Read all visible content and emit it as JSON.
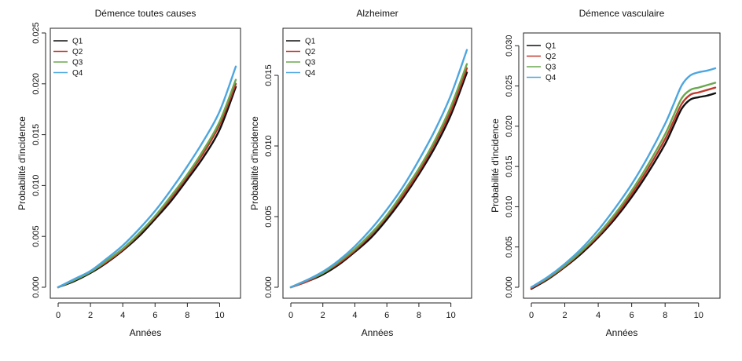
{
  "chart_data": [
    {
      "type": "line",
      "title": "Démence toutes causes",
      "xlabel": "Années",
      "ylabel": "Probabilité d'incidence",
      "xlim": [
        0,
        11
      ],
      "ylim": [
        0,
        0.025
      ],
      "xticks": [
        0,
        2,
        4,
        6,
        8,
        10
      ],
      "yticks": [
        0.0,
        0.005,
        0.01,
        0.015,
        0.02,
        0.025
      ],
      "ytick_labels": [
        "0.000",
        "0.005",
        "0.010",
        "0.015",
        "0.020",
        "0.025"
      ],
      "legend": "top-left",
      "grid": false,
      "x": [
        0,
        1,
        2,
        3,
        4,
        5,
        6,
        7,
        8,
        9,
        10,
        11
      ],
      "series": [
        {
          "name": "Q1",
          "color": "#111111",
          "values": [
            0,
            0.0006,
            0.0014,
            0.0024,
            0.0036,
            0.005,
            0.0067,
            0.0085,
            0.0106,
            0.0128,
            0.0155,
            0.0197
          ]
        },
        {
          "name": "Q2",
          "color": "#c0392b",
          "values": [
            0,
            0.0007,
            0.0015,
            0.0025,
            0.0037,
            0.0052,
            0.0069,
            0.0088,
            0.0109,
            0.0132,
            0.016,
            0.02
          ]
        },
        {
          "name": "Q3",
          "color": "#6aa84f",
          "values": [
            0,
            0.0007,
            0.0015,
            0.0026,
            0.0038,
            0.0053,
            0.007,
            0.009,
            0.0111,
            0.0135,
            0.0163,
            0.0204
          ]
        },
        {
          "name": "Q4",
          "color": "#4da6e0",
          "values": [
            0,
            0.0008,
            0.0016,
            0.0028,
            0.0041,
            0.0057,
            0.0075,
            0.0096,
            0.0119,
            0.0144,
            0.0173,
            0.0217
          ]
        }
      ]
    },
    {
      "type": "line",
      "title": "Alzheimer",
      "xlabel": "Années",
      "ylabel": "Probabilité d'incidence",
      "xlim": [
        0,
        11
      ],
      "ylim": [
        0,
        0.018
      ],
      "xticks": [
        0,
        2,
        4,
        6,
        8,
        10
      ],
      "yticks": [
        0.0,
        0.005,
        0.01,
        0.015
      ],
      "ytick_labels": [
        "0.000",
        "0.005",
        "0.010",
        "0.015"
      ],
      "legend": "top-left",
      "grid": false,
      "x": [
        0,
        1,
        2,
        3,
        4,
        5,
        6,
        7,
        8,
        9,
        10,
        11
      ],
      "series": [
        {
          "name": "Q1",
          "color": "#111111",
          "values": [
            0,
            0.0004,
            0.0009,
            0.0016,
            0.0025,
            0.0035,
            0.0048,
            0.0063,
            0.008,
            0.0099,
            0.0122,
            0.0152
          ]
        },
        {
          "name": "Q2",
          "color": "#c0392b",
          "values": [
            0,
            0.0004,
            0.001,
            0.0017,
            0.0026,
            0.0037,
            0.005,
            0.0065,
            0.0082,
            0.0102,
            0.0125,
            0.0155
          ]
        },
        {
          "name": "Q3",
          "color": "#6aa84f",
          "values": [
            0,
            0.0005,
            0.001,
            0.0018,
            0.0027,
            0.0038,
            0.0051,
            0.0067,
            0.0084,
            0.0104,
            0.0128,
            0.0158
          ]
        },
        {
          "name": "Q4",
          "color": "#4da6e0",
          "values": [
            0,
            0.0005,
            0.0011,
            0.0019,
            0.0029,
            0.0041,
            0.0055,
            0.0071,
            0.009,
            0.0111,
            0.0136,
            0.0168
          ]
        }
      ]
    },
    {
      "type": "line",
      "title": "Démence vasculaire",
      "xlabel": "Années",
      "ylabel": "Probabilité d'incidence",
      "xlim": [
        0,
        11
      ],
      "ylim": [
        0,
        0.031
      ],
      "xticks": [
        0,
        2,
        4,
        6,
        8,
        10
      ],
      "yticks": [
        0.0,
        0.005,
        0.01,
        0.015,
        0.02,
        0.025,
        0.03
      ],
      "ytick_labels": [
        "0.000",
        "0.005",
        "0.010",
        "0.015",
        "0.020",
        "0.025",
        "0.030"
      ],
      "legend": "top-left",
      "grid": false,
      "x": [
        0,
        1,
        2,
        3,
        4,
        5,
        6,
        7,
        8,
        8.5,
        9,
        9.5,
        10,
        10.5,
        11
      ],
      "series": [
        {
          "name": "Q1",
          "color": "#111111",
          "values": [
            -0.0002,
            0.001,
            0.0025,
            0.0042,
            0.0062,
            0.0085,
            0.0112,
            0.0143,
            0.0178,
            0.02,
            0.0222,
            0.0233,
            0.0236,
            0.0238,
            0.0241
          ]
        },
        {
          "name": "Q2",
          "color": "#c0392b",
          "values": [
            -0.0001,
            0.0011,
            0.0026,
            0.0044,
            0.0064,
            0.0088,
            0.0116,
            0.0148,
            0.0184,
            0.0206,
            0.0228,
            0.0239,
            0.0242,
            0.0245,
            0.0248
          ]
        },
        {
          "name": "Q3",
          "color": "#6aa84f",
          "values": [
            0,
            0.0012,
            0.0027,
            0.0045,
            0.0066,
            0.0091,
            0.012,
            0.0153,
            0.019,
            0.0213,
            0.0235,
            0.0245,
            0.0248,
            0.0251,
            0.0254
          ]
        },
        {
          "name": "Q4",
          "color": "#4da6e0",
          "values": [
            0,
            0.0013,
            0.0029,
            0.0048,
            0.0071,
            0.0098,
            0.0128,
            0.0163,
            0.0203,
            0.0227,
            0.0251,
            0.0263,
            0.0267,
            0.0269,
            0.0272
          ]
        }
      ]
    }
  ]
}
